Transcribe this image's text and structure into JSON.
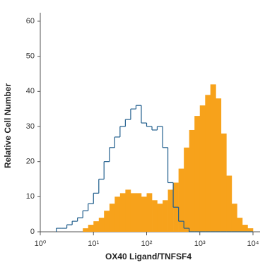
{
  "chart_data": {
    "type": "histogram",
    "xlabel": "OX40 Ligand/TNFSF4",
    "ylabel": "Relative Cell Number",
    "xscale": "log",
    "xlim": [
      1,
      10000
    ],
    "xticks": [
      {
        "value": 1,
        "label": "10⁰"
      },
      {
        "value": 10,
        "label": "10¹"
      },
      {
        "value": 100,
        "label": "10²"
      },
      {
        "value": 1000,
        "label": "10³"
      },
      {
        "value": 10000,
        "label": "10⁴"
      }
    ],
    "ylim": [
      0,
      60
    ],
    "yticks": [
      0,
      10,
      20,
      30,
      40,
      50,
      60
    ],
    "bins": [
      2,
      2.51,
      3.16,
      3.98,
      5.01,
      6.31,
      7.94,
      10,
      12.6,
      15.8,
      20,
      25.1,
      31.6,
      39.8,
      50.1,
      63.1,
      79.4,
      100,
      126,
      158,
      200,
      251,
      316,
      398,
      501,
      631,
      794,
      1000,
      1260,
      1580,
      2000,
      2510,
      3160,
      3980,
      5010,
      6310,
      7940,
      10000
    ],
    "series": [
      {
        "style": "filled",
        "color": "#f7a21b",
        "values": [
          0,
          0,
          0,
          0,
          0,
          1,
          2,
          3,
          4,
          6,
          8,
          10,
          11,
          12,
          11,
          11,
          10,
          11,
          9,
          8,
          9,
          12,
          14,
          18,
          24,
          29,
          33,
          36,
          39,
          42,
          38,
          28,
          16,
          8,
          4,
          2,
          1
        ]
      },
      {
        "style": "outline",
        "color": "#1f5d8c",
        "values": [
          1,
          1,
          2,
          3,
          4,
          6,
          8,
          11,
          15,
          20,
          24,
          27,
          30,
          32,
          35,
          36,
          31,
          30,
          29,
          30,
          24,
          14,
          7,
          3,
          1,
          0,
          0,
          0,
          0,
          0,
          0,
          0,
          0,
          0,
          0,
          0,
          0
        ]
      }
    ]
  }
}
